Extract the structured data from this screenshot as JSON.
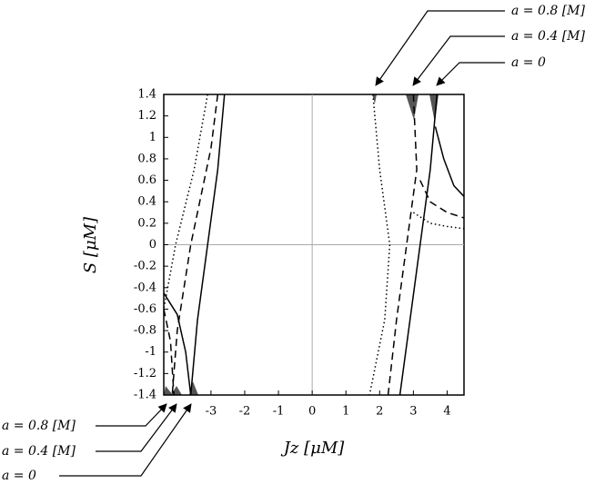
{
  "chart_data": {
    "type": "line",
    "xlabel": "Jz [μM]",
    "ylabel": "S [μM]",
    "xlim": [
      -4.4,
      4.5
    ],
    "ylim": [
      -1.4,
      1.4
    ],
    "xticks": [
      -3,
      -2,
      -1,
      0,
      1,
      2,
      3,
      4
    ],
    "yticks": [
      -1.4,
      -1.2,
      -1,
      -0.8,
      -0.6,
      -0.4,
      -0.2,
      0,
      0.2,
      0.4,
      0.6,
      0.8,
      1,
      1.2,
      1.4
    ],
    "zero_lines": true,
    "annotations_top": [
      "a = 0.8 [M]",
      "a = 0.4 [M]",
      "a = 0"
    ],
    "annotations_bottom": [
      "a = 0.8 [M]",
      "a = 0.4 [M]",
      "a = 0"
    ],
    "series": [
      {
        "color": "#000",
        "dash": "solid",
        "x": [
          -2.6,
          -2.8,
          -3.1,
          -3.4,
          -3.6
        ],
        "values": [
          1.4,
          0.7,
          0,
          -0.7,
          -1.4
        ]
      },
      {
        "color": "#000",
        "dash": "solid",
        "x": [
          -4.4,
          -4.0,
          -3.75,
          -3.6
        ],
        "values": [
          -0.45,
          -0.65,
          -1.0,
          -1.4
        ]
      },
      {
        "color": "#000",
        "dash": "dashed",
        "x": [
          -2.8,
          -3.0,
          -3.6,
          -4.0,
          -4.15
        ],
        "values": [
          1.4,
          0.9,
          0,
          -0.8,
          -1.4
        ]
      },
      {
        "color": "#000",
        "dash": "dashed",
        "x": [
          -4.4,
          -4.2,
          -4.1
        ],
        "values": [
          -0.6,
          -0.9,
          -1.4
        ]
      },
      {
        "color": "#000",
        "dash": "dotted",
        "x": [
          -3.1,
          -3.5,
          -4.05,
          -4.4
        ],
        "values": [
          1.4,
          0.7,
          0,
          -0.6
        ]
      },
      {
        "color": "#000",
        "dash": "solid",
        "x": [
          3.7,
          3.5,
          3.2,
          2.9,
          2.6
        ],
        "values": [
          1.4,
          0.7,
          0,
          -0.7,
          -1.4
        ]
      },
      {
        "color": "#000",
        "dash": "solid",
        "x": [
          3.65,
          3.9,
          4.2,
          4.5
        ],
        "values": [
          1.1,
          0.8,
          0.55,
          0.45
        ]
      },
      {
        "color": "#000",
        "dash": "dashed",
        "x": [
          3.0,
          3.1,
          2.8,
          2.5,
          2.25
        ],
        "values": [
          1.4,
          0.7,
          0,
          -0.7,
          -1.4
        ]
      },
      {
        "color": "#000",
        "dash": "dashed",
        "x": [
          3.2,
          3.5,
          4.0,
          4.5
        ],
        "values": [
          0.6,
          0.4,
          0.3,
          0.25
        ]
      },
      {
        "color": "#000",
        "dash": "dotted",
        "x": [
          1.8,
          2.0,
          2.3,
          2.15,
          1.7
        ],
        "values": [
          1.4,
          0.7,
          0,
          -0.7,
          -1.4
        ]
      },
      {
        "color": "#000",
        "dash": "dotted",
        "x": [
          3.0,
          3.5,
          4.0,
          4.5
        ],
        "values": [
          0.3,
          0.2,
          0.17,
          0.15
        ]
      }
    ]
  }
}
